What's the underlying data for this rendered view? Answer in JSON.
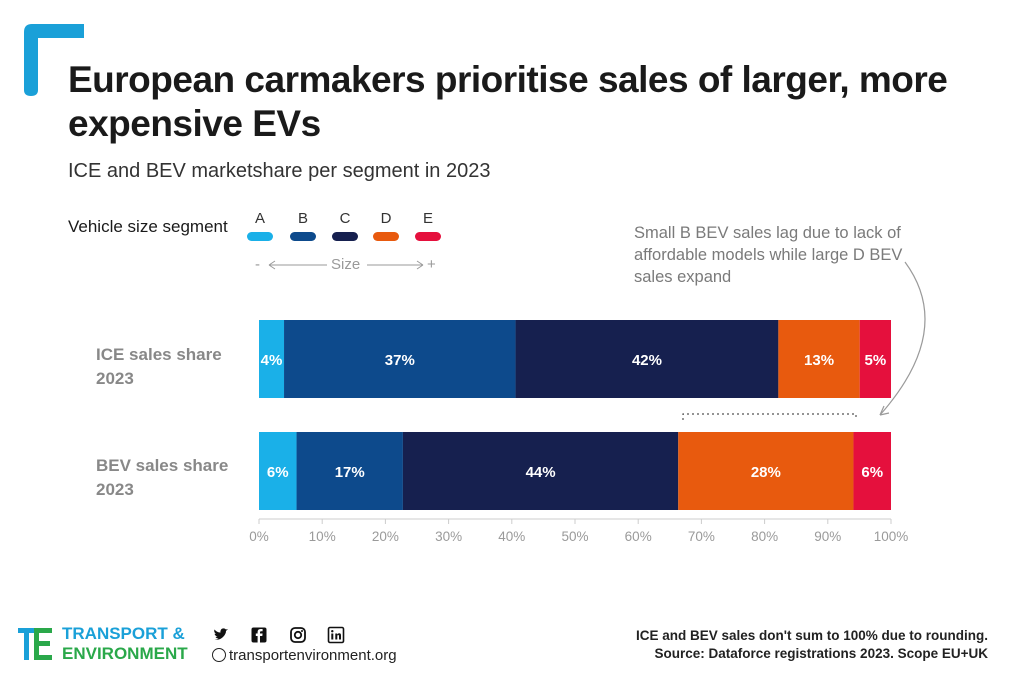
{
  "header": {
    "title": "European carmakers prioritise sales of larger, more expensive EVs",
    "subtitle": "ICE and BEV marketshare per segment in 2023"
  },
  "legend": {
    "title": "Vehicle size segment",
    "items": [
      {
        "label": "A",
        "color": "#1ab0e8"
      },
      {
        "label": "B",
        "color": "#0d4a8c"
      },
      {
        "label": "C",
        "color": "#16204f"
      },
      {
        "label": "D",
        "color": "#e85a0e"
      },
      {
        "label": "E",
        "color": "#e5103d"
      }
    ],
    "size_scale": {
      "minus": "-",
      "label": "Size",
      "plus": "+"
    }
  },
  "annotation": "Small B BEV sales lag due to lack of affordable models while large D BEV sales expand",
  "chart_data": {
    "type": "bar",
    "orientation": "horizontal",
    "stacked": true,
    "categories": [
      "ICE sales share 2023",
      "BEV sales share 2023"
    ],
    "series": [
      {
        "name": "A",
        "values": [
          4,
          6
        ],
        "labels": [
          "4%",
          "6%"
        ],
        "color": "#1ab0e8"
      },
      {
        "name": "B",
        "values": [
          37,
          17
        ],
        "labels": [
          "37%",
          "17%"
        ],
        "color": "#0d4a8c"
      },
      {
        "name": "C",
        "values": [
          42,
          44
        ],
        "labels": [
          "42%",
          "44%"
        ],
        "color": "#16204f"
      },
      {
        "name": "D",
        "values": [
          13,
          28
        ],
        "labels": [
          "13%",
          "28%"
        ],
        "color": "#e85a0e"
      },
      {
        "name": "E",
        "values": [
          5,
          6
        ],
        "labels": [
          "5%",
          "6%"
        ],
        "color": "#e5103d"
      }
    ],
    "xlim": [
      0,
      100
    ],
    "ticks": [
      "0%",
      "10%",
      "20%",
      "30%",
      "40%",
      "50%",
      "60%",
      "70%",
      "80%",
      "90%",
      "100%"
    ],
    "grid": false,
    "legend_position": "top-left"
  },
  "footer": {
    "brand_line1": "TRANSPORT &",
    "brand_line2": "ENVIRONMENT",
    "website": "transportenvironment.org",
    "socials": [
      "twitter-icon",
      "facebook-icon",
      "instagram-icon",
      "linkedin-icon"
    ],
    "note1": "ICE and BEV sales don't sum to 100% due to rounding.",
    "note2": "Source: Dataforce registrations 2023. Scope EU+UK"
  }
}
